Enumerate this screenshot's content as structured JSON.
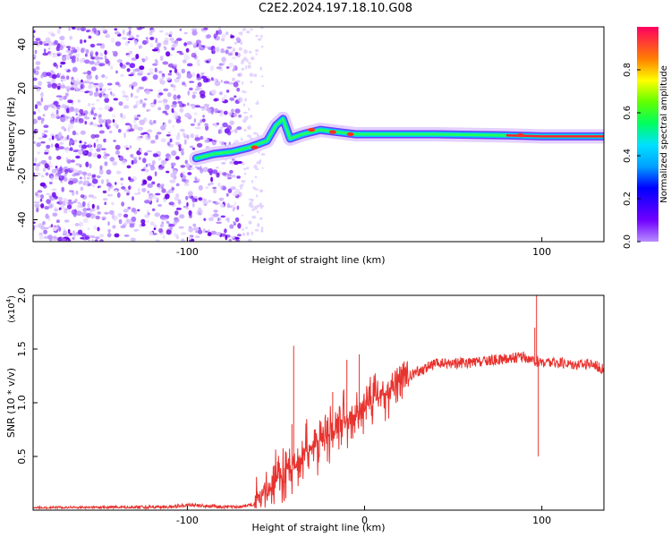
{
  "title": "C2E2.2024.197.18.10.G08",
  "colorbar": {
    "label": "Normalized spectral amplitude",
    "ticks": [
      "0.0",
      "0.2",
      "0.4",
      "0.6",
      "0.8"
    ]
  },
  "chart_data": [
    {
      "type": "heatmap",
      "xlabel": "Height of straight line (km)",
      "ylabel": "Frequency (Hz)",
      "xlim": [
        -187,
        135
      ],
      "ylim": [
        -50,
        48
      ],
      "xticks": [
        "-100",
        "100"
      ],
      "yticks": [
        "40",
        "20",
        "0",
        "-20",
        "-40"
      ],
      "noise_region_x": [
        -187,
        -70
      ],
      "sparse_noise_x": [
        -70,
        -57
      ],
      "signal_trace": [
        {
          "x": -95,
          "freq": -12
        },
        {
          "x": -85,
          "freq": -10
        },
        {
          "x": -75,
          "freq": -9
        },
        {
          "x": -65,
          "freq": -7
        },
        {
          "x": -55,
          "freq": -4
        },
        {
          "x": -50,
          "freq": 3
        },
        {
          "x": -46,
          "freq": 6
        },
        {
          "x": -42,
          "freq": -3
        },
        {
          "x": -35,
          "freq": -1
        },
        {
          "x": -25,
          "freq": 1
        },
        {
          "x": -15,
          "freq": 0
        },
        {
          "x": -5,
          "freq": -1
        },
        {
          "x": 10,
          "freq": -1
        },
        {
          "x": 40,
          "freq": -1
        },
        {
          "x": 80,
          "freq": -1.5
        },
        {
          "x": 100,
          "freq": -2
        },
        {
          "x": 135,
          "freq": -2
        }
      ],
      "colorbar_range": [
        0,
        1
      ]
    },
    {
      "type": "line",
      "xlabel": "Height of straight line (km)",
      "ylabel": "SNR (10 * v/v)",
      "scale_label": "(x10",
      "scale_exp": "4",
      "xlim": [
        -187,
        135
      ],
      "ylim": [
        0,
        20000
      ],
      "xticks": [
        "-100",
        "0",
        "100"
      ],
      "yticks": [
        "0.5",
        "1.0",
        "1.5",
        "2.0"
      ],
      "series": [
        {
          "color": "#e8322e",
          "points": [
            [
              -187,
              200
            ],
            [
              -150,
              250
            ],
            [
              -110,
              300
            ],
            [
              -100,
              500
            ],
            [
              -80,
              300
            ],
            [
              -70,
              300
            ],
            [
              -62,
              600
            ],
            [
              -58,
              1200
            ],
            [
              -54,
              1800
            ],
            [
              -50,
              2600
            ],
            [
              -46,
              3400
            ],
            [
              -42,
              4000
            ],
            [
              -38,
              4600
            ],
            [
              -34,
              5200
            ],
            [
              -30,
              5800
            ],
            [
              -26,
              6300
            ],
            [
              -22,
              6800
            ],
            [
              -18,
              7300
            ],
            [
              -14,
              7800
            ],
            [
              -10,
              8300
            ],
            [
              -6,
              8800
            ],
            [
              -2,
              9200
            ],
            [
              2,
              9700
            ],
            [
              6,
              10200
            ],
            [
              10,
              10800
            ],
            [
              15,
              11400
            ],
            [
              20,
              11900
            ],
            [
              25,
              12400
            ],
            [
              30,
              12900
            ],
            [
              35,
              13300
            ],
            [
              40,
              13600
            ],
            [
              50,
              13700
            ],
            [
              60,
              13700
            ],
            [
              70,
              13900
            ],
            [
              80,
              14100
            ],
            [
              85,
              14200
            ],
            [
              90,
              14300
            ],
            [
              95,
              13800
            ],
            [
              100,
              13800
            ],
            [
              110,
              13700
            ],
            [
              120,
              13600
            ],
            [
              130,
              13600
            ],
            [
              135,
              13000
            ]
          ],
          "spikes": [
            [
              -40,
              15300
            ],
            [
              -41,
              8000
            ],
            [
              -37,
              3000
            ],
            [
              -10,
              14000
            ],
            [
              -3,
              14500
            ],
            [
              -18,
              11000
            ],
            [
              97,
              20000
            ],
            [
              98,
              5000
            ],
            [
              96,
              17000
            ]
          ]
        }
      ]
    }
  ]
}
